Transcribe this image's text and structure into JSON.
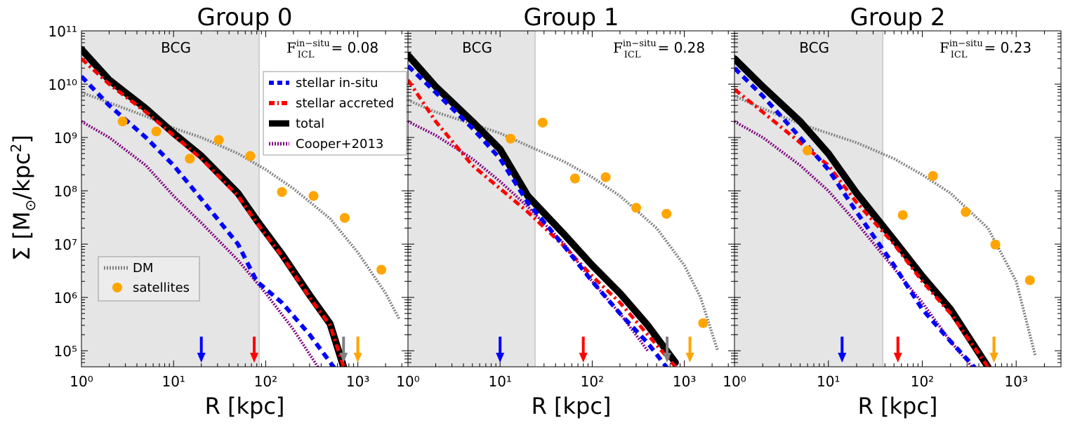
{
  "figure": {
    "ylabel_main": "Σ [M",
    "ylabel_sub": "⊙",
    "ylabel_unit": "/kpc",
    "ylabel_exp": "2",
    "ylabel_close": "]"
  },
  "chart_data": [
    {
      "type": "line",
      "title": "Group 0",
      "xlabel": "R [kpc]",
      "ylabel": "Σ [M⊙/kpc²]",
      "xscale": "log",
      "yscale": "log",
      "xlim": [
        1,
        3500
      ],
      "ylim": [
        50000,
        100000000000
      ],
      "bcg_label": "BCG",
      "bcg_radius": 85,
      "ficl_symbol": "F",
      "ficl_super": "in−situ",
      "ficl_sub": "ICL",
      "ficl_text": "= 0.08",
      "ficl_value": 0.08,
      "legend": {
        "position": "upper-right",
        "entries": [
          "stellar in-situ",
          "stellar accreted",
          "total",
          "Cooper+2013"
        ]
      },
      "legend2": {
        "position": "lower-left",
        "entries": [
          "DM",
          "satellites"
        ]
      },
      "series": [
        {
          "name": "stellar in-situ",
          "color": "#0000ff",
          "style": "dashed",
          "x": [
            1,
            2,
            5,
            10,
            20,
            50,
            80,
            150,
            300,
            600
          ],
          "y": [
            14000000000,
            4000000000,
            1000000000,
            300000000,
            70000000,
            10000000,
            2000000,
            800000,
            200000,
            40000
          ]
        },
        {
          "name": "stellar accreted",
          "color": "#ff0000",
          "style": "dashdot",
          "x": [
            1,
            2,
            5,
            10,
            20,
            50,
            80,
            150,
            300,
            500,
            700
          ],
          "y": [
            30000000000,
            10000000000,
            3000000000,
            1100000000,
            400000000,
            80000000,
            25000000,
            6000000,
            1000000,
            300000,
            50000
          ]
        },
        {
          "name": "total",
          "color": "#000000",
          "style": "solid",
          "x": [
            1,
            2,
            5,
            10,
            20,
            50,
            80,
            150,
            300,
            500,
            700
          ],
          "y": [
            45000000000,
            12000000000,
            3500000000,
            1200000000,
            450000000,
            90000000,
            28000000,
            6500000,
            1100000,
            320000,
            50000
          ]
        },
        {
          "name": "Cooper+2013",
          "color": "#800080",
          "style": "dotted",
          "x": [
            1,
            2,
            5,
            10,
            20,
            50,
            100,
            200,
            400
          ],
          "y": [
            2000000000,
            1000000000,
            300000000,
            80000000,
            25000000,
            5000000,
            1200000,
            250000,
            40000
          ]
        },
        {
          "name": "DM",
          "color": "#808080",
          "style": "dotted",
          "x": [
            1,
            2,
            5,
            10,
            20,
            50,
            100,
            200,
            500,
            1000,
            2000,
            2800
          ],
          "y": [
            7000000000,
            4500000000,
            2500000000,
            1500000000,
            1000000000,
            500000000,
            250000000,
            110000000,
            30000000,
            7000000,
            1200000,
            400000
          ]
        }
      ],
      "satellites": {
        "x": [
          2.8,
          6.5,
          15,
          31,
          68,
          150,
          330,
          720,
          1800
        ],
        "y": [
          2000000000,
          1300000000,
          400000000,
          900000000,
          450000000,
          95000000,
          80000000,
          31000000,
          3300000
        ]
      },
      "arrows": [
        {
          "x": 20,
          "color": "#0000ff"
        },
        {
          "x": 75,
          "color": "#ff0000"
        },
        {
          "x": 700,
          "color": "#808080"
        },
        {
          "x": 1000,
          "color": "#ffa500"
        }
      ]
    },
    {
      "type": "line",
      "title": "Group 1",
      "xlabel": "R [kpc]",
      "xscale": "log",
      "yscale": "log",
      "xlim": [
        1,
        3500
      ],
      "ylim": [
        50000,
        100000000000
      ],
      "bcg_label": "BCG",
      "bcg_radius": 24,
      "ficl_symbol": "F",
      "ficl_super": "in−situ",
      "ficl_sub": "ICL",
      "ficl_text": "= 0.28",
      "ficl_value": 0.28,
      "series": [
        {
          "name": "stellar in-situ",
          "color": "#0000ff",
          "style": "dashed",
          "x": [
            1,
            2,
            5,
            10,
            20,
            50,
            100,
            200,
            400,
            800
          ],
          "y": [
            22000000000,
            7000000000,
            1500000000,
            400000000,
            60000000,
            9000000,
            2000000,
            500000,
            140000,
            30000
          ]
        },
        {
          "name": "stellar accreted",
          "color": "#ff0000",
          "style": "dashdot",
          "x": [
            1,
            2,
            5,
            10,
            20,
            50,
            100,
            200,
            400,
            800
          ],
          "y": [
            12000000000,
            2000000000,
            300000000,
            110000000,
            40000000,
            9000000,
            2500000,
            800000,
            200000,
            50000
          ]
        },
        {
          "name": "total",
          "color": "#000000",
          "style": "solid",
          "x": [
            1,
            2,
            5,
            10,
            20,
            50,
            100,
            200,
            400,
            800
          ],
          "y": [
            35000000000,
            9000000000,
            2000000000,
            600000000,
            80000000,
            15000000,
            4000000,
            1200000,
            300000,
            60000
          ]
        },
        {
          "name": "Cooper+2013",
          "color": "#800080",
          "style": "dotted",
          "x": [
            1,
            2,
            5,
            10,
            20,
            50,
            100,
            200,
            400
          ],
          "y": [
            2000000000,
            1100000000,
            400000000,
            150000000,
            50000000,
            10000000,
            2000000,
            500000,
            100000
          ]
        },
        {
          "name": "DM",
          "color": "#808080",
          "style": "dotted",
          "x": [
            1,
            2,
            5,
            10,
            20,
            50,
            100,
            200,
            500,
            1000,
            1500,
            2300
          ],
          "y": [
            5000000000,
            3000000000,
            1800000000,
            1200000000,
            700000000,
            350000000,
            180000000,
            80000000,
            20000000,
            4000000,
            1000000,
            100000
          ]
        }
      ],
      "satellites": {
        "x": [
          13,
          29,
          65,
          140,
          300,
          640,
          1600
        ],
        "y": [
          950000000,
          1900000000,
          170000000,
          180000000,
          48000000,
          37000000,
          330000
        ]
      },
      "arrows": [
        {
          "x": 10,
          "color": "#0000ff"
        },
        {
          "x": 80,
          "color": "#ff0000"
        },
        {
          "x": 650,
          "color": "#808080"
        },
        {
          "x": 1150,
          "color": "#ffa500"
        }
      ]
    },
    {
      "type": "line",
      "title": "Group 2",
      "xlabel": "R [kpc]",
      "xscale": "log",
      "yscale": "log",
      "xlim": [
        1,
        3000
      ],
      "ylim": [
        50000,
        100000000000
      ],
      "bcg_label": "BCG",
      "bcg_radius": 38,
      "ficl_symbol": "F",
      "ficl_super": "in−situ",
      "ficl_sub": "ICL",
      "ficl_text": "= 0.23",
      "ficl_value": 0.23,
      "series": [
        {
          "name": "stellar in-situ",
          "color": "#0000ff",
          "style": "dashed",
          "x": [
            1,
            2,
            5,
            10,
            20,
            50,
            100,
            200,
            400
          ],
          "y": [
            20000000000,
            6000000000,
            1000000000,
            250000000,
            40000000,
            4000000,
            600000,
            150000,
            40000
          ]
        },
        {
          "name": "stellar accreted",
          "color": "#ff0000",
          "style": "dashdot",
          "x": [
            1,
            2,
            5,
            10,
            20,
            50,
            100,
            200,
            500
          ],
          "y": [
            8000000000,
            3000000000,
            800000000,
            300000000,
            60000000,
            10000000,
            2000000,
            500000,
            50000
          ]
        },
        {
          "name": "total",
          "color": "#000000",
          "style": "solid",
          "x": [
            1,
            2,
            5,
            10,
            20,
            50,
            100,
            200,
            500
          ],
          "y": [
            30000000000,
            9000000000,
            2000000000,
            500000000,
            90000000,
            12000000,
            2500000,
            600000,
            50000
          ]
        },
        {
          "name": "Cooper+2013",
          "color": "#800080",
          "style": "dotted",
          "x": [
            1,
            2,
            5,
            10,
            20,
            50,
            100,
            200,
            400
          ],
          "y": [
            2000000000,
            1000000000,
            300000000,
            100000000,
            25000000,
            3500000,
            800000,
            150000,
            35000
          ]
        },
        {
          "name": "DM",
          "color": "#808080",
          "style": "dotted",
          "x": [
            1,
            2,
            5,
            10,
            20,
            50,
            100,
            200,
            500,
            1000,
            1600
          ],
          "y": [
            6000000000,
            3500000000,
            1800000000,
            1200000000,
            800000000,
            400000000,
            200000000,
            90000000,
            20000000,
            2000000,
            80000
          ]
        }
      ],
      "satellites": {
        "x": [
          6,
          62,
          130,
          290,
          600,
          1400
        ],
        "y": [
          570000000,
          35000000,
          190000000,
          40000000,
          9800000,
          2100000
        ]
      },
      "arrows": [
        {
          "x": 14,
          "color": "#0000ff"
        },
        {
          "x": 55,
          "color": "#ff0000"
        },
        {
          "x": 580,
          "color": "#808080"
        },
        {
          "x": 580,
          "color": "#ffa500"
        }
      ]
    }
  ]
}
